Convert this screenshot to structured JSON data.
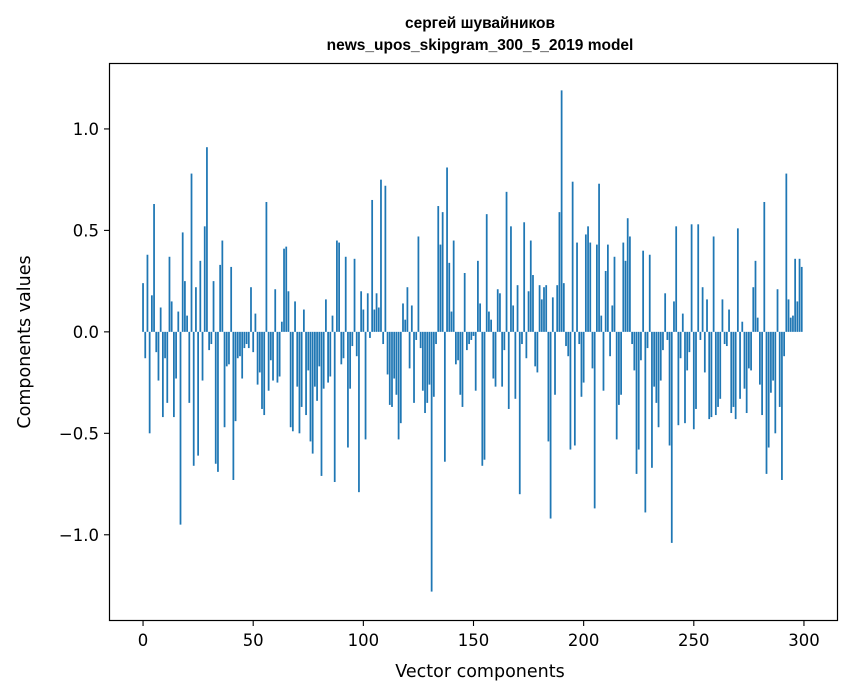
{
  "chart_data": {
    "type": "bar",
    "title": "сергей шувайников\nnews_upos_skipgram_300_5_2019 model",
    "xlabel": "Vector components",
    "ylabel": "Components values",
    "xlim": [
      -15,
      315
    ],
    "ylim": [
      -1.42,
      1.32
    ],
    "xticks": [
      0,
      50,
      100,
      150,
      200,
      250,
      300
    ],
    "xtick_labels": [
      "0",
      "50",
      "100",
      "150",
      "200",
      "250",
      "300"
    ],
    "yticks": [
      -1.0,
      -0.5,
      0.0,
      0.5,
      1.0
    ],
    "ytick_labels": [
      "−1.0",
      "−0.5",
      "0.0",
      "0.5",
      "1.0"
    ],
    "grid": false,
    "legend": "none",
    "bar_color": "#1f77b4",
    "values": [
      0.24,
      -0.13,
      0.38,
      -0.5,
      0.18,
      0.63,
      -0.1,
      -0.24,
      0.12,
      -0.42,
      -0.13,
      -0.35,
      0.37,
      0.15,
      -0.42,
      -0.23,
      0.1,
      -0.95,
      0.49,
      0.25,
      0.08,
      -0.35,
      0.78,
      -0.66,
      0.22,
      -0.61,
      0.35,
      -0.24,
      0.52,
      0.91,
      -0.09,
      -0.06,
      0.25,
      -0.65,
      -0.69,
      0.33,
      0.45,
      -0.47,
      -0.17,
      -0.16,
      0.32,
      -0.73,
      -0.44,
      -0.13,
      -0.12,
      -0.23,
      -0.08,
      -0.06,
      -0.08,
      0.22,
      -0.1,
      0.09,
      -0.26,
      -0.2,
      -0.38,
      -0.41,
      0.64,
      -0.29,
      -0.14,
      -0.24,
      0.21,
      -0.25,
      -0.22,
      0.05,
      0.41,
      0.42,
      0.2,
      -0.47,
      -0.49,
      0.15,
      -0.27,
      -0.5,
      -0.37,
      0.11,
      -0.41,
      -0.19,
      -0.54,
      -0.6,
      -0.27,
      -0.34,
      -0.17,
      -0.71,
      -0.28,
      0.16,
      -0.25,
      -0.22,
      0.08,
      -0.74,
      0.45,
      0.44,
      -0.16,
      -0.13,
      0.37,
      -0.57,
      -0.28,
      -0.07,
      0.36,
      -0.12,
      -0.79,
      0.2,
      0.11,
      -0.53,
      0.19,
      -0.03,
      0.65,
      0.11,
      0.19,
      0.12,
      0.75,
      -0.06,
      0.72,
      -0.21,
      -0.36,
      -0.37,
      -0.23,
      -0.31,
      -0.53,
      -0.45,
      0.14,
      0.06,
      0.22,
      -0.18,
      0.13,
      -0.35,
      -0.04,
      0.47,
      -0.08,
      -0.29,
      -0.4,
      -0.35,
      -0.26,
      -1.28,
      -0.32,
      -0.06,
      0.62,
      0.43,
      0.59,
      -0.64,
      0.81,
      0.34,
      0.1,
      0.45,
      -0.16,
      -0.14,
      -0.31,
      -0.37,
      0.29,
      -0.09,
      -0.06,
      -0.04,
      -0.02,
      -0.29,
      0.35,
      0.14,
      -0.66,
      -0.63,
      0.58,
      0.1,
      0.06,
      -0.23,
      -0.27,
      0.21,
      0.19,
      -0.27,
      -0.09,
      0.69,
      -0.38,
      0.52,
      0.13,
      -0.33,
      0.23,
      -0.8,
      -0.06,
      0.54,
      -0.13,
      0.2,
      0.45,
      0.28,
      -0.17,
      -0.2,
      0.23,
      0.16,
      0.22,
      0.23,
      -0.54,
      -0.92,
      0.17,
      -0.31,
      0.23,
      0.59,
      1.19,
      0.24,
      -0.07,
      -0.12,
      -0.58,
      0.74,
      -0.56,
      0.44,
      -0.06,
      -0.32,
      -0.25,
      0.48,
      0.52,
      0.44,
      -0.18,
      -0.87,
      0.43,
      0.73,
      0.08,
      -0.29,
      0.3,
      0.43,
      -0.12,
      0.13,
      0.37,
      -0.53,
      -0.36,
      -0.31,
      0.44,
      0.35,
      0.56,
      0.47,
      -0.06,
      -0.19,
      -0.7,
      -0.58,
      -0.14,
      0.4,
      -0.89,
      -0.08,
      0.38,
      -0.67,
      -0.27,
      -0.35,
      -0.47,
      -0.24,
      -0.09,
      0.19,
      -0.04,
      -0.56,
      -1.04,
      0.15,
      0.52,
      -0.46,
      -0.13,
      0.09,
      -0.45,
      -0.19,
      -0.1,
      0.53,
      -0.48,
      -0.38,
      0.53,
      -0.04,
      0.22,
      -0.2,
      0.16,
      -0.43,
      -0.42,
      0.47,
      -0.41,
      -0.37,
      -0.33,
      0.16,
      -0.06,
      -0.07,
      0.11,
      -0.4,
      -0.37,
      -0.43,
      0.51,
      -0.33,
      0.05,
      -0.28,
      -0.4,
      -0.18,
      -0.19,
      0.22,
      0.35,
      0.07,
      -0.26,
      -0.41,
      0.64,
      -0.7,
      -0.57,
      -0.3,
      -0.24,
      -0.5,
      0.21,
      -0.37,
      -0.73,
      -0.12,
      0.78,
      0.16,
      0.07,
      0.08,
      0.36,
      0.15,
      0.36,
      0.32
    ]
  }
}
